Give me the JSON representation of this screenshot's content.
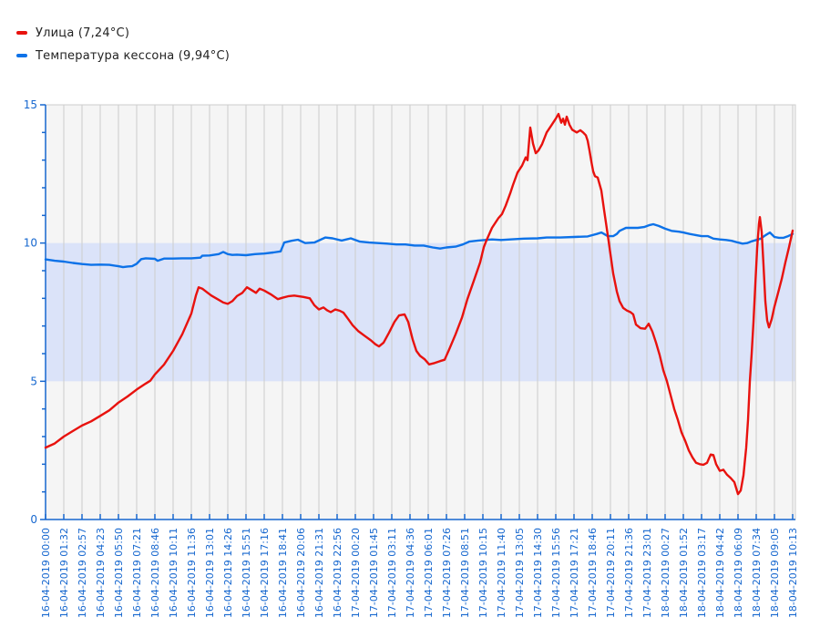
{
  "legend": {
    "items": [
      {
        "name": "Улица",
        "label": "Улица (7,24°C)",
        "current_value": "7,24°C",
        "color": "#e8120e"
      },
      {
        "name": "Температура кессона",
        "label": "Температура кессона (9,94°C)",
        "current_value": "9,94°C",
        "color": "#0d72e8"
      }
    ]
  },
  "chart_data": {
    "type": "line",
    "title": "",
    "xlabel": "",
    "ylabel": "",
    "ylim": [
      0,
      15
    ],
    "y_major_ticks": [
      0,
      5,
      10,
      15
    ],
    "y_minor_step": 1,
    "grid": "vertical-only",
    "legend_position": "top-left",
    "band": {
      "from": 5,
      "to": 10,
      "color": "#dbe3f9"
    },
    "style": {
      "plot_bg": "#f5f5f5",
      "plot_border": "#cccccc",
      "grid_color": "#cccccc",
      "axis_color": "#1667cf",
      "tick_label_color": "#1667cf"
    },
    "x_tick_labels": [
      "16-04-2019 00:00",
      "16-04-2019 01:32",
      "16-04-2019 02:57",
      "16-04-2019 04:23",
      "16-04-2019 05:50",
      "16-04-2019 07:21",
      "16-04-2019 08:46",
      "16-04-2019 10:11",
      "16-04-2019 11:36",
      "16-04-2019 13:01",
      "16-04-2019 14:26",
      "16-04-2019 15:51",
      "16-04-2019 17:16",
      "16-04-2019 18:41",
      "16-04-2019 20:06",
      "16-04-2019 21:31",
      "16-04-2019 22:56",
      "17-04-2019 00:20",
      "17-04-2019 01:45",
      "17-04-2019 03:11",
      "17-04-2019 04:36",
      "17-04-2019 06:01",
      "17-04-2019 07:26",
      "17-04-2019 08:51",
      "17-04-2019 10:15",
      "17-04-2019 11:40",
      "17-04-2019 13:05",
      "17-04-2019 14:30",
      "17-04-2019 15:56",
      "17-04-2019 17:21",
      "17-04-2019 18:46",
      "17-04-2019 20:11",
      "17-04-2019 21:36",
      "17-04-2019 23:01",
      "18-04-2019 00:27",
      "18-04-2019 01:52",
      "18-04-2019 03:17",
      "18-04-2019 04:42",
      "18-04-2019 06:09",
      "18-04-2019 07:34",
      "18-04-2019 09:05",
      "18-04-2019 10:13"
    ],
    "x_unit": "index of x_tick_labels (fractional = between ticks)",
    "series": [
      {
        "name": "Температура кессона",
        "color": "#0d72e8",
        "current_value_label": "9,94°C",
        "points": [
          [
            0,
            9.41
          ],
          [
            0.5,
            9.36
          ],
          [
            1,
            9.33
          ],
          [
            1.5,
            9.28
          ],
          [
            2,
            9.24
          ],
          [
            2.5,
            9.21
          ],
          [
            3,
            9.22
          ],
          [
            3.5,
            9.21
          ],
          [
            4,
            9.16
          ],
          [
            4.25,
            9.13
          ],
          [
            4.5,
            9.15
          ],
          [
            4.75,
            9.16
          ],
          [
            5,
            9.25
          ],
          [
            5.25,
            9.42
          ],
          [
            5.5,
            9.45
          ],
          [
            6,
            9.43
          ],
          [
            6.15,
            9.36
          ],
          [
            6.5,
            9.44
          ],
          [
            7,
            9.44
          ],
          [
            7.5,
            9.45
          ],
          [
            8,
            9.45
          ],
          [
            8.5,
            9.47
          ],
          [
            8.6,
            9.54
          ],
          [
            9,
            9.55
          ],
          [
            9.5,
            9.6
          ],
          [
            9.75,
            9.68
          ],
          [
            10,
            9.6
          ],
          [
            10.25,
            9.57
          ],
          [
            10.5,
            9.58
          ],
          [
            11,
            9.56
          ],
          [
            11.5,
            9.6
          ],
          [
            12,
            9.62
          ],
          [
            12.5,
            9.66
          ],
          [
            12.9,
            9.7
          ],
          [
            13.1,
            10.02
          ],
          [
            13.5,
            10.08
          ],
          [
            13.85,
            10.12
          ],
          [
            14.25,
            10.0
          ],
          [
            14.75,
            10.02
          ],
          [
            15.35,
            10.2
          ],
          [
            15.75,
            10.17
          ],
          [
            16.25,
            10.09
          ],
          [
            16.75,
            10.17
          ],
          [
            17.25,
            10.05
          ],
          [
            17.75,
            10.02
          ],
          [
            18.25,
            10.0
          ],
          [
            18.75,
            9.98
          ],
          [
            19.25,
            9.95
          ],
          [
            19.75,
            9.95
          ],
          [
            20.25,
            9.91
          ],
          [
            20.75,
            9.91
          ],
          [
            21.25,
            9.84
          ],
          [
            21.65,
            9.8
          ],
          [
            22,
            9.84
          ],
          [
            22.5,
            9.87
          ],
          [
            22.9,
            9.95
          ],
          [
            23.25,
            10.05
          ],
          [
            23.75,
            10.09
          ],
          [
            24.5,
            10.13
          ],
          [
            25,
            10.11
          ],
          [
            25.5,
            10.13
          ],
          [
            26.25,
            10.16
          ],
          [
            27,
            10.17
          ],
          [
            27.5,
            10.2
          ],
          [
            28.25,
            10.2
          ],
          [
            29,
            10.22
          ],
          [
            29.75,
            10.24
          ],
          [
            30.25,
            10.33
          ],
          [
            30.5,
            10.38
          ],
          [
            30.65,
            10.33
          ],
          [
            30.85,
            10.25
          ],
          [
            31.15,
            10.25
          ],
          [
            31.35,
            10.33
          ],
          [
            31.5,
            10.44
          ],
          [
            31.85,
            10.55
          ],
          [
            32.5,
            10.55
          ],
          [
            32.85,
            10.58
          ],
          [
            33.15,
            10.65
          ],
          [
            33.35,
            10.68
          ],
          [
            33.65,
            10.62
          ],
          [
            34,
            10.52
          ],
          [
            34.35,
            10.44
          ],
          [
            34.75,
            10.41
          ],
          [
            35,
            10.38
          ],
          [
            35.35,
            10.33
          ],
          [
            35.75,
            10.28
          ],
          [
            36,
            10.25
          ],
          [
            36.35,
            10.25
          ],
          [
            36.65,
            10.16
          ],
          [
            37,
            10.13
          ],
          [
            37.35,
            10.11
          ],
          [
            37.65,
            10.08
          ],
          [
            38,
            10.02
          ],
          [
            38.25,
            9.98
          ],
          [
            38.5,
            10.0
          ],
          [
            38.75,
            10.06
          ],
          [
            39,
            10.11
          ],
          [
            39.25,
            10.16
          ],
          [
            39.5,
            10.28
          ],
          [
            39.75,
            10.38
          ],
          [
            40,
            10.22
          ],
          [
            40.25,
            10.19
          ],
          [
            40.5,
            10.19
          ],
          [
            40.75,
            10.25
          ],
          [
            41,
            10.33
          ]
        ]
      },
      {
        "name": "Улица",
        "color": "#e8120e",
        "current_value_label": "7,24°C",
        "points": [
          [
            0,
            2.6
          ],
          [
            0.5,
            2.75
          ],
          [
            1,
            3.0
          ],
          [
            1.5,
            3.2
          ],
          [
            2,
            3.4
          ],
          [
            2.5,
            3.55
          ],
          [
            3,
            3.75
          ],
          [
            3.5,
            3.95
          ],
          [
            4,
            4.23
          ],
          [
            4.5,
            4.45
          ],
          [
            5,
            4.7
          ],
          [
            5.5,
            4.92
          ],
          [
            5.75,
            5.02
          ],
          [
            6,
            5.25
          ],
          [
            6.5,
            5.6
          ],
          [
            7,
            6.1
          ],
          [
            7.5,
            6.7
          ],
          [
            8,
            7.45
          ],
          [
            8.25,
            8.1
          ],
          [
            8.4,
            8.4
          ],
          [
            8.6,
            8.35
          ],
          [
            8.9,
            8.2
          ],
          [
            9.1,
            8.1
          ],
          [
            9.5,
            7.95
          ],
          [
            9.75,
            7.85
          ],
          [
            10,
            7.8
          ],
          [
            10.25,
            7.9
          ],
          [
            10.5,
            8.08
          ],
          [
            10.8,
            8.2
          ],
          [
            11.05,
            8.4
          ],
          [
            11.3,
            8.3
          ],
          [
            11.55,
            8.2
          ],
          [
            11.75,
            8.35
          ],
          [
            12,
            8.28
          ],
          [
            12.35,
            8.15
          ],
          [
            12.75,
            7.97
          ],
          [
            13,
            8.02
          ],
          [
            13.35,
            8.08
          ],
          [
            13.65,
            8.1
          ],
          [
            14.15,
            8.05
          ],
          [
            14.5,
            8.0
          ],
          [
            14.75,
            7.75
          ],
          [
            15,
            7.6
          ],
          [
            15.25,
            7.67
          ],
          [
            15.45,
            7.57
          ],
          [
            15.65,
            7.5
          ],
          [
            15.9,
            7.6
          ],
          [
            16.15,
            7.55
          ],
          [
            16.35,
            7.48
          ],
          [
            16.6,
            7.26
          ],
          [
            16.85,
            7.03
          ],
          [
            17.15,
            6.82
          ],
          [
            17.5,
            6.65
          ],
          [
            17.85,
            6.48
          ],
          [
            18.1,
            6.34
          ],
          [
            18.3,
            6.26
          ],
          [
            18.55,
            6.4
          ],
          [
            18.85,
            6.76
          ],
          [
            19.15,
            7.15
          ],
          [
            19.4,
            7.38
          ],
          [
            19.7,
            7.42
          ],
          [
            19.9,
            7.15
          ],
          [
            20.15,
            6.5
          ],
          [
            20.35,
            6.1
          ],
          [
            20.55,
            5.92
          ],
          [
            20.8,
            5.8
          ],
          [
            21.05,
            5.61
          ],
          [
            21.35,
            5.66
          ],
          [
            21.65,
            5.73
          ],
          [
            21.9,
            5.78
          ],
          [
            22.15,
            6.15
          ],
          [
            22.5,
            6.7
          ],
          [
            22.85,
            7.3
          ],
          [
            23.15,
            7.97
          ],
          [
            23.5,
            8.63
          ],
          [
            23.85,
            9.3
          ],
          [
            24.05,
            9.85
          ],
          [
            24.2,
            10.1
          ],
          [
            24.5,
            10.55
          ],
          [
            24.85,
            10.9
          ],
          [
            25.05,
            11.05
          ],
          [
            25.25,
            11.35
          ],
          [
            25.5,
            11.8
          ],
          [
            25.65,
            12.1
          ],
          [
            25.9,
            12.55
          ],
          [
            26.15,
            12.8
          ],
          [
            26.35,
            13.1
          ],
          [
            26.45,
            13.0
          ],
          [
            26.6,
            14.18
          ],
          [
            26.75,
            13.6
          ],
          [
            26.9,
            13.25
          ],
          [
            27.05,
            13.35
          ],
          [
            27.25,
            13.58
          ],
          [
            27.5,
            14.0
          ],
          [
            27.75,
            14.25
          ],
          [
            28,
            14.5
          ],
          [
            28.15,
            14.67
          ],
          [
            28.3,
            14.35
          ],
          [
            28.4,
            14.5
          ],
          [
            28.5,
            14.28
          ],
          [
            28.6,
            14.57
          ],
          [
            28.75,
            14.28
          ],
          [
            28.9,
            14.1
          ],
          [
            29.15,
            14.0
          ],
          [
            29.35,
            14.08
          ],
          [
            29.5,
            14.0
          ],
          [
            29.65,
            13.9
          ],
          [
            29.75,
            13.7
          ],
          [
            29.85,
            13.35
          ],
          [
            29.95,
            12.96
          ],
          [
            30.05,
            12.6
          ],
          [
            30.15,
            12.42
          ],
          [
            30.3,
            12.37
          ],
          [
            30.5,
            11.9
          ],
          [
            30.65,
            11.2
          ],
          [
            30.85,
            10.3
          ],
          [
            31,
            9.6
          ],
          [
            31.15,
            8.9
          ],
          [
            31.35,
            8.25
          ],
          [
            31.5,
            7.9
          ],
          [
            31.7,
            7.65
          ],
          [
            31.9,
            7.56
          ],
          [
            32.1,
            7.5
          ],
          [
            32.25,
            7.42
          ],
          [
            32.4,
            7.05
          ],
          [
            32.65,
            6.92
          ],
          [
            32.9,
            6.9
          ],
          [
            33.1,
            7.08
          ],
          [
            33.3,
            6.8
          ],
          [
            33.5,
            6.4
          ],
          [
            33.7,
            5.95
          ],
          [
            33.9,
            5.4
          ],
          [
            34.1,
            5.0
          ],
          [
            34.3,
            4.5
          ],
          [
            34.5,
            4.0
          ],
          [
            34.7,
            3.6
          ],
          [
            34.9,
            3.15
          ],
          [
            35.1,
            2.85
          ],
          [
            35.3,
            2.5
          ],
          [
            35.5,
            2.25
          ],
          [
            35.7,
            2.05
          ],
          [
            35.9,
            2.0
          ],
          [
            36.1,
            1.98
          ],
          [
            36.3,
            2.05
          ],
          [
            36.5,
            2.35
          ],
          [
            36.65,
            2.33
          ],
          [
            36.8,
            2.0
          ],
          [
            37,
            1.76
          ],
          [
            37.2,
            1.8
          ],
          [
            37.4,
            1.62
          ],
          [
            37.6,
            1.5
          ],
          [
            37.8,
            1.35
          ],
          [
            38,
            0.92
          ],
          [
            38.15,
            1.05
          ],
          [
            38.3,
            1.6
          ],
          [
            38.45,
            2.6
          ],
          [
            38.55,
            3.6
          ],
          [
            38.65,
            5.0
          ],
          [
            38.75,
            6.0
          ],
          [
            38.85,
            7.15
          ],
          [
            38.95,
            8.5
          ],
          [
            39.05,
            9.8
          ],
          [
            39.15,
            10.7
          ],
          [
            39.2,
            10.94
          ],
          [
            39.3,
            10.4
          ],
          [
            39.4,
            9.2
          ],
          [
            39.5,
            7.9
          ],
          [
            39.6,
            7.2
          ],
          [
            39.7,
            6.95
          ],
          [
            39.85,
            7.25
          ],
          [
            40,
            7.7
          ],
          [
            40.2,
            8.2
          ],
          [
            40.4,
            8.7
          ],
          [
            40.6,
            9.3
          ],
          [
            40.8,
            9.85
          ],
          [
            41,
            10.45
          ]
        ]
      }
    ]
  }
}
